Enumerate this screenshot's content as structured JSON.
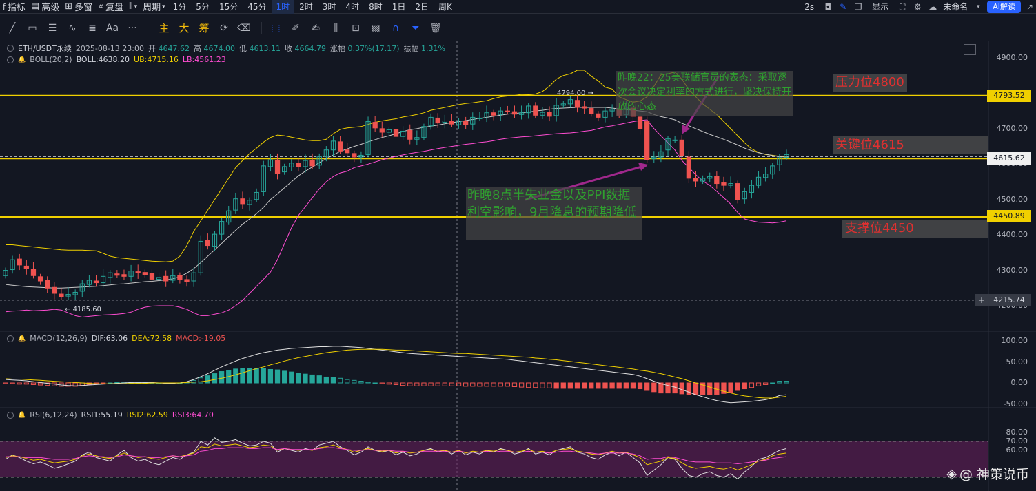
{
  "topbar": {
    "indicators": "指标",
    "advanced": "高级",
    "multi_window": "多窗",
    "replay": "复盘",
    "period": "周期",
    "timeframes": [
      "1分",
      "5分",
      "15分",
      "45分",
      "1时",
      "2时",
      "3时",
      "4时",
      "8时",
      "1日",
      "2日",
      "周K"
    ],
    "active_timeframe": "1时",
    "interval_2s": "2s",
    "display": "显示",
    "unnamed": "未命名",
    "ai_button": "AI解读"
  },
  "drawing_tools": {
    "font_tool": "Aa",
    "more": "···",
    "main": "主",
    "big": "大",
    "chip": "筹"
  },
  "legend": {
    "symbol": "ETH/USDT永续",
    "datetime": "2025-08-13 23:00",
    "open_label": "开",
    "open": "4647.62",
    "high_label": "高",
    "high": "4674.00",
    "low_label": "低",
    "low": "4613.11",
    "close_label": "收",
    "close": "4664.79",
    "change_label": "涨幅",
    "change": "0.37%(17.17)",
    "amplitude_label": "振幅",
    "amplitude": "1.31%",
    "boll_name": "BOLL(20,2)",
    "boll": "BOLL:4638.20",
    "ub": "UB:4715.16",
    "lb": "LB:4561.23",
    "macd_name": "MACD(12,26,9)",
    "dif": "DIF:63.06",
    "dea": "DEA:72.58",
    "macd": "MACD:-19.05",
    "rsi_name": "RSI(6,12,24)",
    "rsi1": "RSI1:55.19",
    "rsi2": "RSI2:62.59",
    "rsi3": "RSI3:64.70"
  },
  "annotations": {
    "resistance": "压力位4800",
    "key_level": "关键位4615",
    "support": "支撑位4450",
    "note_top": "昨晚22：25美联储官员的表态：采取逐次会议决定利率的方式进行，坚决保持开放的心态",
    "note_bottom": "昨晚8点半失业金以及PPI数据利空影响，9月降息的预期降低"
  },
  "price_tags": {
    "resistance_line": "4793.52",
    "key_line": "4615.62",
    "support_line": "4450.89",
    "crosshair": "4215.74",
    "high_marker": "4794.00",
    "low_marker": "4185.60"
  },
  "watermark": "@ 神策说币",
  "colors": {
    "up": "#26a69a",
    "down": "#ef5350",
    "level": "#f0d000",
    "ub": "#f0d000",
    "mid": "#c8c8c8",
    "lb": "#ff4dd2",
    "dif": "#e0e0e0",
    "dea": "#f0d000",
    "rsi_band": "#6b1f5e"
  },
  "chart_data": {
    "type": "candlestick",
    "interval": "1h",
    "price_axis": {
      "ticks": [
        4900,
        4800,
        4700,
        4600,
        4500,
        4400,
        4300,
        4200
      ],
      "labels": [
        "4900.00",
        "4800.00",
        "4700.00",
        "4600.00",
        "4500.00",
        "4400.00",
        "4300.00",
        "4200.00"
      ],
      "ylim": [
        4155,
        4935
      ]
    },
    "horizontal_levels": [
      4793.52,
      4615.62,
      4450.89
    ],
    "candles_close": [
      4300,
      4330,
      4315,
      4305,
      4285,
      4270,
      4250,
      4235,
      4225,
      4232,
      4238,
      4262,
      4272,
      4265,
      4283,
      4293,
      4286,
      4283,
      4298,
      4293,
      4288,
      4275,
      4280,
      4270,
      4285,
      4274,
      4268,
      4293,
      4382,
      4370,
      4402,
      4438,
      4468,
      4502,
      4488,
      4498,
      4520,
      4595,
      4612,
      4574,
      4593,
      4603,
      4593,
      4610,
      4595,
      4622,
      4640,
      4665,
      4637,
      4632,
      4620,
      4625,
      4720,
      4702,
      4690,
      4697,
      4678,
      4693,
      4670,
      4675,
      4706,
      4732,
      4716,
      4722,
      4713,
      4722,
      4712,
      4732,
      4730,
      4745,
      4738,
      4750,
      4748,
      4741,
      4745,
      4764,
      4738,
      4746,
      4735,
      4766,
      4770,
      4782,
      4760,
      4758,
      4742,
      4732,
      4750,
      4755,
      4738,
      4758,
      4735,
      4700,
      4612,
      4620,
      4635,
      4672,
      4668,
      4623,
      4560,
      4552,
      4560,
      4565,
      4545,
      4540,
      4545,
      4500,
      4522,
      4540,
      4563,
      4572,
      4595,
      4618,
      4627
    ],
    "candles_open": [
      4285,
      4302,
      4332,
      4312,
      4303,
      4282,
      4272,
      4252,
      4233,
      4227,
      4231,
      4241,
      4260,
      4270,
      4265,
      4280,
      4290,
      4288,
      4283,
      4296,
      4294,
      4291,
      4275,
      4283,
      4272,
      4286,
      4274,
      4270,
      4293,
      4384,
      4368,
      4402,
      4436,
      4470,
      4502,
      4486,
      4500,
      4522,
      4593,
      4610,
      4578,
      4592,
      4602,
      4593,
      4610,
      4597,
      4622,
      4640,
      4663,
      4640,
      4630,
      4620,
      4627,
      4718,
      4700,
      4690,
      4697,
      4678,
      4695,
      4670,
      4675,
      4708,
      4730,
      4718,
      4722,
      4711,
      4722,
      4713,
      4730,
      4730,
      4745,
      4740,
      4750,
      4748,
      4740,
      4745,
      4764,
      4738,
      4746,
      4737,
      4766,
      4770,
      4780,
      4762,
      4757,
      4742,
      4732,
      4750,
      4755,
      4740,
      4758,
      4733,
      4720,
      4615,
      4620,
      4640,
      4668,
      4668,
      4620,
      4560,
      4552,
      4560,
      4565,
      4547,
      4540,
      4545,
      4502,
      4520,
      4540,
      4562,
      4572,
      4598,
      4619
    ],
    "bb_upper": [
      4372,
      4372,
      4370,
      4368,
      4366,
      4364,
      4362,
      4360,
      4358,
      4357,
      4357,
      4357,
      4356,
      4355,
      4348,
      4340,
      4336,
      4334,
      4332,
      4330,
      4328,
      4326,
      4325,
      4324,
      4326,
      4340,
      4370,
      4410,
      4440,
      4470,
      4500,
      4530,
      4560,
      4590,
      4610,
      4630,
      4645,
      4662,
      4675,
      4682,
      4680,
      4676,
      4672,
      4668,
      4666,
      4666,
      4670,
      4686,
      4698,
      4702,
      4704,
      4706,
      4712,
      4718,
      4722,
      4725,
      4728,
      4733,
      4736,
      4740,
      4745,
      4752,
      4756,
      4760,
      4764,
      4768,
      4771,
      4773,
      4776,
      4779,
      4785,
      4790,
      4792,
      4794,
      4797,
      4796,
      4798,
      4805,
      4820,
      4840,
      4850,
      4855,
      4865,
      4865,
      4848,
      4835,
      4817,
      4812,
      4790,
      4782,
      4775,
      4778,
      4790,
      4820,
      4852,
      4855,
      4860,
      4840,
      4810,
      4790,
      4770,
      4755,
      4740,
      4720,
      4700,
      4680,
      4660,
      4643,
      4633,
      4627,
      4625,
      4622,
      4620
    ],
    "bb_mid": [
      4260,
      4258,
      4256,
      4254,
      4253,
      4252,
      4251,
      4250,
      4250,
      4251,
      4252,
      4253,
      4254,
      4255,
      4257,
      4259,
      4261,
      4262,
      4264,
      4266,
      4268,
      4269,
      4271,
      4273,
      4276,
      4282,
      4292,
      4305,
      4322,
      4340,
      4358,
      4376,
      4395,
      4413,
      4430,
      4445,
      4460,
      4478,
      4500,
      4516,
      4533,
      4550,
      4567,
      4580,
      4592,
      4604,
      4615,
      4626,
      4636,
      4643,
      4650,
      4656,
      4663,
      4669,
      4675,
      4680,
      4686,
      4692,
      4697,
      4700,
      4704,
      4707,
      4710,
      4714,
      4717,
      4720,
      4723,
      4726,
      4729,
      4732,
      4735,
      4738,
      4741,
      4743,
      4745,
      4747,
      4750,
      4752,
      4755,
      4757,
      4758,
      4759,
      4760,
      4760,
      4760,
      4760,
      4760,
      4758,
      4756,
      4754,
      4752,
      4750,
      4748,
      4740,
      4734,
      4730,
      4725,
      4715,
      4708,
      4700,
      4692,
      4684,
      4677,
      4670,
      4662,
      4654,
      4645,
      4638,
      4632,
      4628,
      4624,
      4621,
      4620
    ],
    "bb_lower": [
      4183,
      4185,
      4186,
      4188,
      4186,
      4187,
      4188,
      4190,
      4188,
      4180,
      4172,
      4168,
      4170,
      4172,
      4174,
      4175,
      4176,
      4178,
      4182,
      4190,
      4196,
      4199,
      4200,
      4200,
      4200,
      4196,
      4190,
      4180,
      4172,
      4172,
      4176,
      4180,
      4188,
      4200,
      4215,
      4235,
      4255,
      4275,
      4295,
      4330,
      4375,
      4420,
      4455,
      4480,
      4505,
      4530,
      4550,
      4565,
      4575,
      4580,
      4590,
      4595,
      4600,
      4606,
      4612,
      4617,
      4622,
      4626,
      4630,
      4633,
      4636,
      4640,
      4644,
      4647,
      4650,
      4653,
      4656,
      4658,
      4661,
      4663,
      4666,
      4670,
      4673,
      4675,
      4677,
      4678,
      4680,
      4682,
      4684,
      4686,
      4687,
      4688,
      4690,
      4693,
      4695,
      4700,
      4705,
      4708,
      4712,
      4716,
      4720,
      4723,
      4725,
      4700,
      4680,
      4660,
      4640,
      4610,
      4590,
      4570,
      4552,
      4540,
      4523,
      4505,
      4487,
      4463,
      4445,
      4440,
      4436,
      4435,
      4434,
      4436,
      4440
    ],
    "macd": {
      "ticks": [
        100,
        50,
        0,
        -50
      ],
      "labels": [
        "100.00",
        "50.00",
        "0.00",
        "-50.00"
      ],
      "ylim": [
        -62,
        112
      ],
      "dif": [
        8,
        7,
        6,
        5,
        3,
        1,
        -1,
        -3,
        -5,
        -6,
        -7,
        -6,
        -5,
        -4,
        -3,
        -2,
        -1,
        0,
        1,
        1,
        1,
        1,
        0,
        -1,
        -1,
        0,
        3,
        8,
        15,
        22,
        30,
        38,
        45,
        52,
        58,
        63,
        68,
        72,
        75,
        78,
        80,
        82,
        83,
        84,
        85,
        86,
        86,
        87,
        87,
        86,
        85,
        84,
        82,
        80,
        78,
        76,
        74,
        72,
        70,
        69,
        68,
        67,
        66,
        65,
        64,
        63,
        62,
        61,
        60,
        59,
        58,
        57,
        56,
        54,
        52,
        50,
        48,
        46,
        44,
        42,
        40,
        38,
        36,
        34,
        32,
        30,
        28,
        26,
        24,
        22,
        20,
        16,
        10,
        4,
        -2,
        -6,
        -10,
        -16,
        -22,
        -28,
        -33,
        -38,
        -42,
        -45,
        -47,
        -46,
        -45,
        -44,
        -42,
        -40,
        -36,
        -30,
        -28
      ],
      "dea": [
        10,
        9,
        9,
        8,
        7,
        6,
        5,
        4,
        3,
        2,
        1,
        0,
        -1,
        -2,
        -2,
        -2,
        -2,
        -2,
        -1,
        -1,
        -1,
        0,
        0,
        0,
        0,
        0,
        1,
        2,
        3,
        5,
        8,
        11,
        15,
        19,
        24,
        29,
        34,
        38,
        43,
        47,
        52,
        56,
        60,
        63,
        66,
        69,
        72,
        74,
        76,
        78,
        79,
        80,
        80,
        80,
        80,
        79,
        78,
        78,
        77,
        76,
        75,
        74,
        73,
        72,
        71,
        70,
        70,
        69,
        68,
        67,
        66,
        65,
        64,
        63,
        62,
        61,
        59,
        58,
        56,
        55,
        53,
        51,
        49,
        47,
        45,
        43,
        41,
        39,
        37,
        35,
        33,
        30,
        28,
        25,
        22,
        18,
        14,
        10,
        5,
        0,
        -5,
        -10,
        -15,
        -20,
        -24,
        -28,
        -31,
        -33,
        -35,
        -36,
        -36,
        -34,
        -32
      ],
      "hist": [
        -2,
        -2,
        -3,
        -3,
        -4,
        -5,
        -6,
        -7,
        -8,
        -8,
        -8,
        -6,
        -4,
        -2,
        -1,
        0,
        1,
        2,
        2,
        2,
        2,
        1,
        0,
        -1,
        -1,
        0,
        2,
        6,
        12,
        17,
        22,
        27,
        30,
        33,
        34,
        34,
        34,
        34,
        32,
        31,
        28,
        26,
        23,
        21,
        19,
        17,
        14,
        13,
        11,
        8,
        6,
        4,
        2,
        0,
        -2,
        -3,
        -4,
        -6,
        -7,
        -7,
        -7,
        -7,
        -7,
        -7,
        -7,
        -7,
        -8,
        -8,
        -8,
        -8,
        -8,
        -8,
        -8,
        -9,
        -10,
        -11,
        -11,
        -12,
        -12,
        -13,
        -13,
        -13,
        -13,
        -13,
        -13,
        -13,
        -13,
        -13,
        -13,
        -13,
        -13,
        -14,
        -18,
        -21,
        -24,
        -24,
        -24,
        -26,
        -27,
        -28,
        -28,
        -28,
        -27,
        -25,
        -23,
        -18,
        -14,
        -11,
        -7,
        -4,
        0,
        4,
        4
      ]
    },
    "rsi": {
      "ticks": [
        80,
        70,
        60
      ],
      "labels": [
        "80.00",
        "70.00",
        "60.00"
      ],
      "band": [
        30,
        70
      ],
      "ylim": [
        26,
        84
      ],
      "rsi1": [
        50,
        55,
        52,
        48,
        45,
        47,
        44,
        40,
        42,
        45,
        48,
        55,
        58,
        52,
        50,
        48,
        55,
        60,
        52,
        48,
        50,
        46,
        44,
        48,
        52,
        50,
        55,
        58,
        70,
        66,
        74,
        69,
        70,
        72,
        68,
        65,
        66,
        70,
        68,
        58,
        62,
        60,
        58,
        62,
        60,
        66,
        68,
        70,
        64,
        60,
        55,
        58,
        64,
        60,
        58,
        60,
        55,
        58,
        54,
        56,
        60,
        62,
        58,
        60,
        56,
        60,
        55,
        58,
        56,
        60,
        58,
        62,
        60,
        56,
        58,
        62,
        56,
        58,
        55,
        60,
        62,
        64,
        58,
        56,
        52,
        50,
        55,
        58,
        54,
        58,
        52,
        46,
        32,
        38,
        44,
        52,
        50,
        40,
        32,
        30,
        34,
        36,
        32,
        30,
        34,
        28,
        36,
        42,
        50,
        52,
        56,
        60,
        62
      ],
      "rsi2": [
        52,
        54,
        53,
        51,
        49,
        50,
        48,
        46,
        47,
        48,
        50,
        54,
        56,
        54,
        52,
        51,
        54,
        57,
        54,
        52,
        53,
        51,
        50,
        52,
        54,
        53,
        55,
        57,
        64,
        63,
        67,
        65,
        66,
        67,
        65,
        63,
        64,
        66,
        65,
        60,
        62,
        61,
        60,
        61,
        60,
        63,
        64,
        66,
        63,
        61,
        58,
        60,
        62,
        60,
        59,
        60,
        57,
        59,
        57,
        58,
        60,
        61,
        59,
        60,
        58,
        60,
        57,
        59,
        58,
        60,
        59,
        61,
        60,
        58,
        59,
        61,
        58,
        59,
        57,
        60,
        61,
        62,
        59,
        58,
        56,
        55,
        57,
        59,
        57,
        58,
        55,
        52,
        44,
        46,
        48,
        52,
        51,
        46,
        42,
        40,
        41,
        42,
        40,
        39,
        41,
        38,
        41,
        44,
        48,
        50,
        54,
        56,
        57
      ],
      "rsi3": [
        53,
        53,
        53,
        52,
        52,
        52,
        51,
        50,
        50,
        50,
        51,
        53,
        54,
        53,
        53,
        52,
        53,
        55,
        54,
        53,
        53,
        52,
        52,
        53,
        54,
        53,
        54,
        55,
        59,
        60,
        62,
        62,
        63,
        63,
        63,
        62,
        62,
        63,
        63,
        61,
        62,
        61,
        61,
        61,
        61,
        62,
        63,
        63,
        62,
        61,
        60,
        60,
        61,
        60,
        60,
        60,
        59,
        59,
        58,
        58,
        59,
        59,
        59,
        59,
        58,
        59,
        58,
        58,
        58,
        59,
        58,
        59,
        59,
        58,
        58,
        59,
        58,
        58,
        57,
        58,
        59,
        59,
        58,
        58,
        57,
        56,
        57,
        57,
        57,
        57,
        56,
        54,
        50,
        51,
        51,
        53,
        52,
        50,
        48,
        47,
        47,
        47,
        46,
        46,
        46,
        45,
        46,
        47,
        48,
        49,
        51,
        52,
        53
      ]
    }
  }
}
